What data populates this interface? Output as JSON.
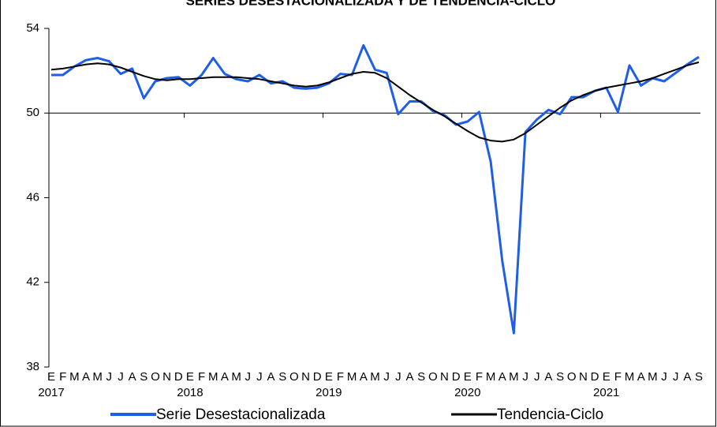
{
  "chart_data": {
    "type": "line",
    "title": "SERIES DESESTACIONALIZADA Y DE TENDENCIA-CICLO",
    "categories": [
      "E",
      "F",
      "M",
      "A",
      "M",
      "J",
      "J",
      "A",
      "S",
      "O",
      "N",
      "D",
      "E",
      "F",
      "M",
      "A",
      "M",
      "J",
      "J",
      "A",
      "S",
      "O",
      "N",
      "D",
      "E",
      "F",
      "M",
      "A",
      "M",
      "J",
      "J",
      "A",
      "S",
      "O",
      "N",
      "D",
      "E",
      "F",
      "M",
      "A",
      "M",
      "J",
      "J",
      "A",
      "S",
      "O",
      "N",
      "D",
      "E",
      "F",
      "M",
      "A",
      "M",
      "J",
      "J",
      "A",
      "S"
    ],
    "year_labels": [
      "2017",
      "2018",
      "2019",
      "2020",
      "2021"
    ],
    "series": [
      {
        "name": "Serie Desestacionalizada",
        "color": "#1f5fe8",
        "width": 3,
        "values": [
          51.8,
          51.8,
          52.2,
          52.5,
          52.6,
          52.45,
          51.85,
          52.1,
          50.7,
          51.5,
          51.65,
          51.7,
          51.3,
          51.8,
          52.6,
          51.85,
          51.6,
          51.5,
          51.8,
          51.4,
          51.5,
          51.2,
          51.15,
          51.2,
          51.4,
          51.85,
          51.8,
          53.2,
          52.05,
          51.9,
          49.95,
          50.55,
          50.55,
          50.1,
          49.9,
          49.45,
          49.6,
          50.05,
          47.7,
          43.0,
          39.6,
          49.1,
          49.7,
          50.15,
          49.95,
          50.75,
          50.75,
          51.05,
          51.2,
          50.05,
          52.25,
          51.3,
          51.65,
          51.5,
          51.9,
          52.3,
          52.65
        ]
      },
      {
        "name": "Tendencia-Ciclo",
        "color": "#000000",
        "width": 2,
        "values": [
          52.05,
          52.1,
          52.2,
          52.3,
          52.35,
          52.3,
          52.15,
          51.95,
          51.75,
          51.6,
          51.55,
          51.6,
          51.6,
          51.65,
          51.7,
          51.7,
          51.7,
          51.65,
          51.6,
          51.5,
          51.4,
          51.3,
          51.25,
          51.3,
          51.45,
          51.65,
          51.85,
          51.95,
          51.9,
          51.65,
          51.25,
          50.85,
          50.5,
          50.15,
          49.85,
          49.5,
          49.15,
          48.85,
          48.7,
          48.65,
          48.75,
          49.05,
          49.45,
          49.85,
          50.25,
          50.6,
          50.85,
          51.05,
          51.2,
          51.3,
          51.4,
          51.5,
          51.65,
          51.85,
          52.05,
          52.25,
          52.4
        ]
      }
    ],
    "ylim": [
      38,
      54
    ],
    "yticks": [
      38,
      42,
      46,
      50,
      54
    ],
    "x_axis_at": 50
  }
}
